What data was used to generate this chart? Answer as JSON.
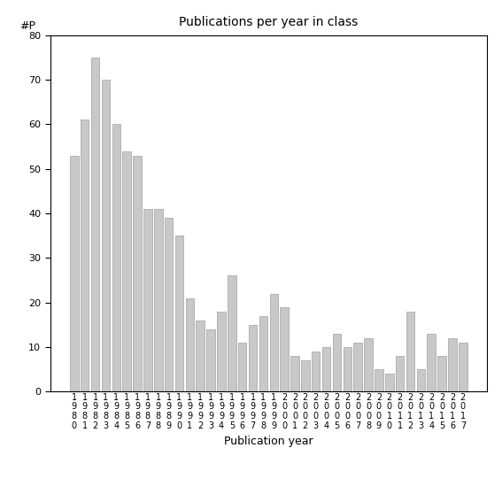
{
  "years": [
    "1980",
    "1981",
    "1982",
    "1983",
    "1984",
    "1985",
    "1986",
    "1987",
    "1988",
    "1989",
    "1990",
    "1991",
    "1992",
    "1993",
    "1994",
    "1995",
    "1996",
    "1997",
    "1998",
    "1999",
    "2000",
    "2001",
    "2002",
    "2003",
    "2004",
    "2005",
    "2006",
    "2007",
    "2008",
    "2009",
    "2010",
    "2011",
    "2012",
    "2013",
    "2014",
    "2015",
    "2016",
    "2017"
  ],
  "values": [
    53,
    61,
    75,
    70,
    60,
    54,
    53,
    41,
    41,
    39,
    35,
    21,
    16,
    14,
    18,
    26,
    11,
    15,
    17,
    22,
    19,
    8,
    7,
    9,
    10,
    13,
    10,
    11,
    12,
    5,
    4,
    8,
    18,
    5,
    13,
    8,
    12,
    11
  ],
  "title": "Publications per year in class",
  "xlabel": "Publication year",
  "ylabel": "#P",
  "ylim": [
    0,
    80
  ],
  "yticks": [
    0,
    10,
    20,
    30,
    40,
    50,
    60,
    70,
    80
  ],
  "bar_color": "#c8c8c8",
  "bar_edgecolor": "#a0a0a0",
  "bg_color": "#ffffff",
  "title_fontsize": 10,
  "label_fontsize": 9,
  "tick_fontsize": 8,
  "xtick_fontsize": 7
}
